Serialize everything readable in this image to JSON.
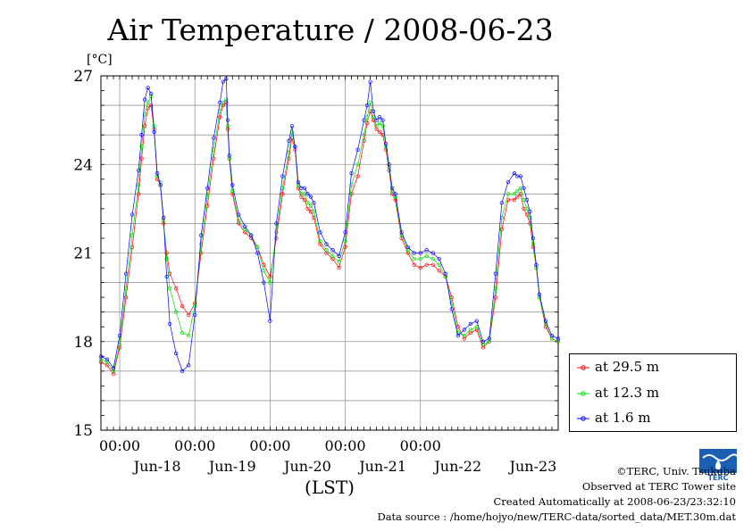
{
  "chart_data": {
    "type": "line",
    "title": "Air Temperature / 2008-06-23",
    "ylabel": "[°C]",
    "xlabel": "(LST)",
    "ylim": [
      15,
      27
    ],
    "yticks": [
      15,
      18,
      21,
      24,
      27
    ],
    "xlim": [
      0,
      146
    ],
    "x_unit": "hours since 2008-06-17 18:00 LST",
    "time_ticks": [
      {
        "x": 6,
        "label": "00:00"
      },
      {
        "x": 30,
        "label": "00:00"
      },
      {
        "x": 54,
        "label": "00:00"
      },
      {
        "x": 78,
        "label": "00:00"
      },
      {
        "x": 102,
        "label": "00:00"
      }
    ],
    "day_labels": [
      {
        "x": 18,
        "label": "Jun-18"
      },
      {
        "x": 42,
        "label": "Jun-19"
      },
      {
        "x": 66,
        "label": "Jun-20"
      },
      {
        "x": 90,
        "label": "Jun-21"
      },
      {
        "x": 114,
        "label": "Jun-22"
      },
      {
        "x": 138,
        "label": "Jun-23"
      }
    ],
    "grid": true,
    "legend_position": "right-bottom, outside",
    "series": [
      {
        "name": "at 29.5 m",
        "color": "#ff0000",
        "x": [
          0,
          2,
          4,
          6,
          8,
          10,
          12,
          13,
          14,
          15,
          16,
          17,
          18,
          19,
          20,
          21,
          22,
          24,
          26,
          28,
          30,
          32,
          34,
          36,
          38,
          39,
          40,
          40.5,
          41,
          42,
          44,
          46,
          48,
          50,
          52,
          54,
          56,
          58,
          60,
          61,
          62,
          63,
          64,
          65,
          66,
          67,
          68,
          70,
          72,
          74,
          76,
          78,
          80,
          82,
          84,
          85,
          86,
          87,
          88,
          89,
          90,
          91,
          92,
          93,
          94,
          96,
          98,
          100,
          102,
          104,
          106,
          108,
          110,
          112,
          114,
          116,
          118,
          120,
          122,
          124,
          126,
          128,
          130,
          132,
          133,
          134,
          135,
          136,
          137,
          138,
          139,
          140,
          142,
          144,
          146
        ],
        "y": [
          17.3,
          17.2,
          16.9,
          17.8,
          19.5,
          21.2,
          23.0,
          24.2,
          25.3,
          25.9,
          26.0,
          25.2,
          23.5,
          23.3,
          22.0,
          21.0,
          20.3,
          19.8,
          19.2,
          18.9,
          19.3,
          21.0,
          22.6,
          24.2,
          25.6,
          26.0,
          26.1,
          25.2,
          24.2,
          23.0,
          22.0,
          21.7,
          21.5,
          21.2,
          20.6,
          20.2,
          21.5,
          23.0,
          24.2,
          24.9,
          24.5,
          23.2,
          22.9,
          22.8,
          22.5,
          22.4,
          22.2,
          21.3,
          21.0,
          20.8,
          20.5,
          21.2,
          23.0,
          23.6,
          24.8,
          25.4,
          25.8,
          25.5,
          25.2,
          25.1,
          25.0,
          24.5,
          23.8,
          23.0,
          22.8,
          21.5,
          21.0,
          20.6,
          20.5,
          20.6,
          20.6,
          20.4,
          20.2,
          19.5,
          18.5,
          18.1,
          18.3,
          18.4,
          17.8,
          18.0,
          19.5,
          21.8,
          22.8,
          22.8,
          22.9,
          23.0,
          22.5,
          22.3,
          22.0,
          21.2,
          20.5,
          19.5,
          18.5,
          18.1,
          18.0
        ]
      },
      {
        "name": "at 12.3 m",
        "color": "#00dd00",
        "x": [
          0,
          2,
          4,
          6,
          8,
          10,
          12,
          13,
          14,
          15,
          16,
          17,
          18,
          19,
          20,
          21,
          22,
          24,
          26,
          28,
          30,
          32,
          34,
          36,
          38,
          39,
          40,
          40.5,
          41,
          42,
          44,
          46,
          48,
          50,
          52,
          54,
          56,
          58,
          60,
          61,
          62,
          63,
          64,
          65,
          66,
          67,
          68,
          70,
          72,
          74,
          76,
          78,
          80,
          82,
          84,
          85,
          86,
          87,
          88,
          89,
          90,
          91,
          92,
          93,
          94,
          96,
          98,
          100,
          102,
          104,
          106,
          108,
          110,
          112,
          114,
          116,
          118,
          120,
          122,
          124,
          126,
          128,
          130,
          132,
          133,
          134,
          135,
          136,
          137,
          138,
          139,
          140,
          142,
          144,
          146
        ],
        "y": [
          17.4,
          17.3,
          17.0,
          17.9,
          19.8,
          21.6,
          23.3,
          24.6,
          25.7,
          26.1,
          26.3,
          25.3,
          23.6,
          23.4,
          22.1,
          20.8,
          19.8,
          19.0,
          18.3,
          18.2,
          19.2,
          21.3,
          22.9,
          24.5,
          25.8,
          26.1,
          26.2,
          25.3,
          24.2,
          23.1,
          22.1,
          21.8,
          21.6,
          21.2,
          20.4,
          20.0,
          21.7,
          23.2,
          24.4,
          25.1,
          24.6,
          23.3,
          23.0,
          23.0,
          22.7,
          22.6,
          22.4,
          21.4,
          21.1,
          20.9,
          20.7,
          21.4,
          23.3,
          24.0,
          25.0,
          25.6,
          26.1,
          25.6,
          25.3,
          25.4,
          25.3,
          24.6,
          23.9,
          23.1,
          22.9,
          21.6,
          21.1,
          20.8,
          20.8,
          20.9,
          20.8,
          20.6,
          20.2,
          19.3,
          18.3,
          18.2,
          18.4,
          18.5,
          17.9,
          18.0,
          19.8,
          22.2,
          23.0,
          23.0,
          23.1,
          23.2,
          22.8,
          22.5,
          22.2,
          21.3,
          20.5,
          19.5,
          18.6,
          18.1,
          18.0
        ]
      },
      {
        "name": "at 1.6 m",
        "color": "#0000ff",
        "x": [
          0,
          2,
          4,
          6,
          8,
          10,
          12,
          13,
          14,
          15,
          16,
          17,
          18,
          19,
          20,
          21,
          22,
          24,
          26,
          28,
          30,
          32,
          34,
          36,
          38,
          39,
          40,
          40.5,
          41,
          42,
          44,
          46,
          48,
          50,
          52,
          54,
          56,
          58,
          60,
          61,
          62,
          63,
          64,
          65,
          66,
          67,
          68,
          70,
          72,
          74,
          76,
          78,
          80,
          82,
          84,
          85,
          86,
          87,
          88,
          89,
          90,
          91,
          92,
          93,
          94,
          96,
          98,
          100,
          102,
          104,
          106,
          108,
          110,
          112,
          114,
          116,
          118,
          120,
          122,
          124,
          126,
          128,
          130,
          132,
          133,
          134,
          135,
          136,
          137,
          138,
          139,
          140,
          142,
          144,
          146
        ],
        "y": [
          17.5,
          17.4,
          17.1,
          18.2,
          20.3,
          22.3,
          23.8,
          25.0,
          26.2,
          26.6,
          26.4,
          25.1,
          23.7,
          23.3,
          22.2,
          20.2,
          18.6,
          17.6,
          17.0,
          17.2,
          18.9,
          21.6,
          23.2,
          24.9,
          26.1,
          26.8,
          26.9,
          25.5,
          24.3,
          23.3,
          22.3,
          21.9,
          21.6,
          21.0,
          20.0,
          18.7,
          22.0,
          23.6,
          24.8,
          25.3,
          24.6,
          23.4,
          23.2,
          23.2,
          23.0,
          22.9,
          22.7,
          21.7,
          21.3,
          21.1,
          20.9,
          21.7,
          23.7,
          24.5,
          25.5,
          26.0,
          26.8,
          25.8,
          25.5,
          25.6,
          25.5,
          24.7,
          24.0,
          23.2,
          23.0,
          21.7,
          21.2,
          21.0,
          21.0,
          21.1,
          21.0,
          20.8,
          20.3,
          19.1,
          18.2,
          18.4,
          18.6,
          18.7,
          18.0,
          18.1,
          20.3,
          22.7,
          23.4,
          23.7,
          23.6,
          23.6,
          23.2,
          22.8,
          22.4,
          21.5,
          20.6,
          19.6,
          18.7,
          18.2,
          18.1
        ]
      }
    ]
  },
  "legend": {
    "items": [
      "at 29.5 m",
      "at 12.3 m",
      "at 1.6 m"
    ]
  },
  "credits": {
    "copyright": "©TERC, Univ. Tsukuba",
    "observed": "Observed at TERC Tower site",
    "created": "Created Automatically at 2008-06-23/23:32:10",
    "source": "Data source : /home/hojyo/new/TERC-data/sorted_data/MET.30m.dat"
  },
  "logo": {
    "text": "TERC",
    "color": "#1a5fb4"
  }
}
